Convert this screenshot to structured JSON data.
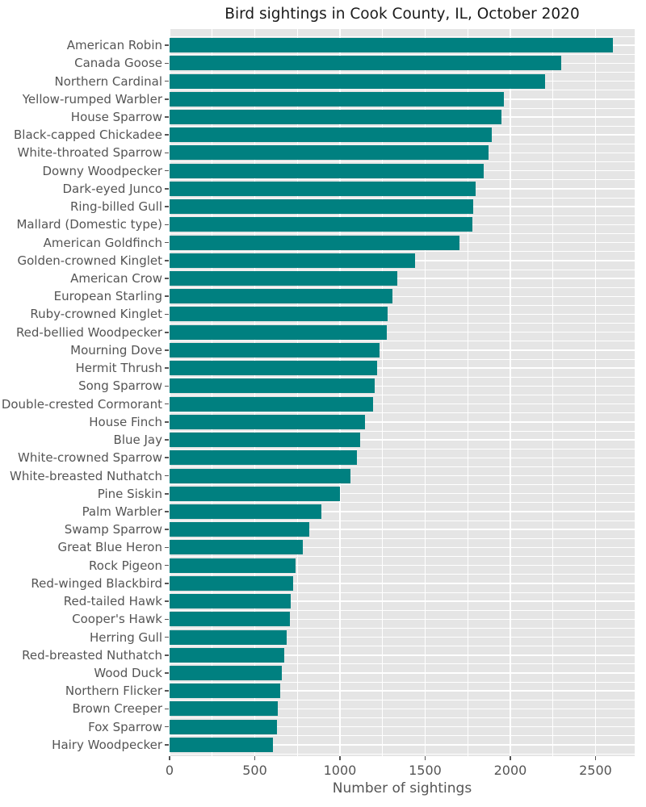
{
  "title": "Bird sightings in Cook County, IL, October 2020",
  "chart_data": {
    "type": "bar",
    "orientation": "horizontal",
    "title": "Bird sightings in Cook County, IL, October 2020",
    "xlabel": "Number of sightings",
    "ylabel": "",
    "legend": "none",
    "grid": "white major and minor gridlines on gray panel",
    "xlim": [
      0,
      2730
    ],
    "xticks": [
      0,
      500,
      1000,
      1500,
      2000,
      2500
    ],
    "xtick_minor": [
      250,
      750,
      1250,
      1750,
      2250
    ],
    "bar_color": "#008080",
    "panel_bg": "#e5e5e5",
    "grid_color": "#ffffff",
    "tick_text_color": "#555555",
    "title_color": "#1a1a1a",
    "categories": [
      "American Robin",
      "Canada Goose",
      "Northern Cardinal",
      "Yellow-rumped Warbler",
      "House Sparrow",
      "Black-capped Chickadee",
      "White-throated Sparrow",
      "Downy Woodpecker",
      "Dark-eyed Junco",
      "Ring-billed Gull",
      "Mallard (Domestic type)",
      "American Goldfinch",
      "Golden-crowned Kinglet",
      "American Crow",
      "European Starling",
      "Ruby-crowned Kinglet",
      "Red-bellied Woodpecker",
      "Mourning Dove",
      "Hermit Thrush",
      "Song Sparrow",
      "Double-crested Cormorant",
      "House Finch",
      "Blue Jay",
      "White-crowned Sparrow",
      "White-breasted Nuthatch",
      "Pine Siskin",
      "Palm Warbler",
      "Swamp Sparrow",
      "Great Blue Heron",
      "Rock Pigeon",
      "Red-winged Blackbird",
      "Red-tailed Hawk",
      "Cooper's Hawk",
      "Herring Gull",
      "Red-breasted Nuthatch",
      "Wood Duck",
      "Northern Flicker",
      "Brown Creeper",
      "Fox Sparrow",
      "Hairy Woodpecker"
    ],
    "values": [
      2600,
      2300,
      2205,
      1960,
      1950,
      1890,
      1870,
      1845,
      1795,
      1780,
      1775,
      1700,
      1440,
      1335,
      1310,
      1280,
      1275,
      1230,
      1220,
      1205,
      1195,
      1145,
      1120,
      1100,
      1060,
      1000,
      890,
      820,
      780,
      740,
      725,
      710,
      705,
      685,
      675,
      660,
      650,
      635,
      630,
      605
    ]
  }
}
